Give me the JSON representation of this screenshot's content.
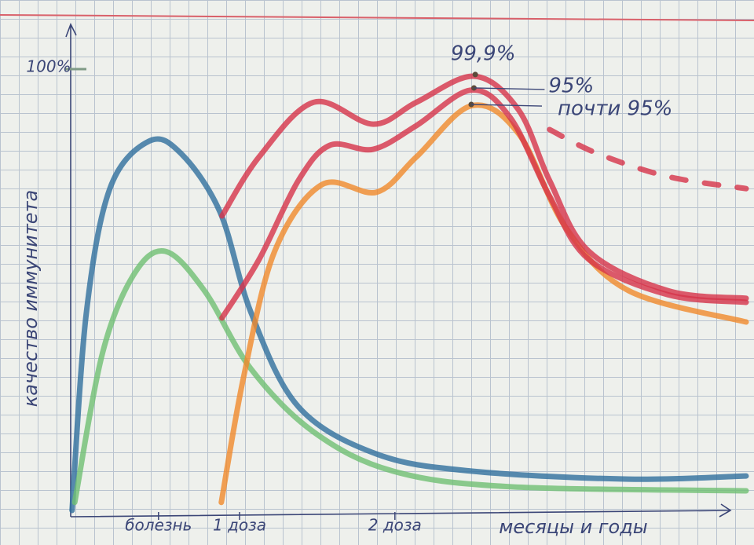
{
  "chart_data": {
    "type": "line",
    "ylabel": "качество иммунитета",
    "xlabel": "месяцы и годы",
    "xlim": [
      0,
      100
    ],
    "ylim": [
      0,
      110
    ],
    "yticks": [
      {
        "value": 100,
        "label": "100%"
      }
    ],
    "xticks": [
      {
        "value": 13,
        "label": "болезнь"
      },
      {
        "value": 25,
        "label": "1 доза"
      },
      {
        "value": 48,
        "label": "2 доза"
      }
    ],
    "series": [
      {
        "color": "#2f6f9e",
        "x": [
          0.2,
          2.3,
          5.8,
          11.6,
          16.3,
          22.1,
          26.7,
          33.7,
          45.3,
          59.3,
          82.6,
          100
        ],
        "values": [
          1.4,
          45.3,
          73.3,
          83.9,
          81.2,
          68.1,
          45.6,
          24.6,
          14.0,
          10.2,
          8.4,
          9.1
        ]
      },
      {
        "color": "#6fbf73",
        "x": [
          0.6,
          4.7,
          9.3,
          14.0,
          19.8,
          26.7,
          36.0,
          47.7,
          65.1,
          100
        ],
        "values": [
          3.2,
          36.5,
          54.0,
          59.3,
          50.5,
          33.0,
          18.9,
          10.2,
          6.7,
          5.8
        ]
      },
      {
        "color": "#f08a2c",
        "x": [
          22.3,
          25.6,
          30.2,
          37.2,
          45.3,
          51.2,
          59.3,
          66.3,
          73.3,
          82.6,
          100
        ],
        "values": [
          3.2,
          31.2,
          59.3,
          74.2,
          72.5,
          80.4,
          91.8,
          85.6,
          64.6,
          50.5,
          43.5
        ]
      },
      {
        "color": "#d6334a",
        "x": [
          22.4,
          27.9,
          33.7,
          38.4,
          44.8,
          51.2,
          59.3,
          65.1,
          70.9,
          76.7,
          88.4,
          100
        ],
        "values": [
          44.4,
          57.5,
          75.1,
          83.0,
          82.1,
          87.4,
          95.3,
          89.1,
          71.6,
          57.5,
          49.6,
          47.9
        ]
      },
      {
        "color": "#d6334a",
        "x": [
          22.4,
          27.9,
          36.0,
          44.8,
          51.2,
          59.8,
          66.3,
          70.9,
          76.7,
          88.4,
          100
        ],
        "values": [
          67.2,
          80.4,
          92.6,
          87.7,
          92.6,
          98.4,
          90.9,
          75.1,
          59.3,
          50.5,
          48.8
        ]
      },
      {
        "color": "#d6334a",
        "dashed": true,
        "x": [
          70.9,
          77.9,
          88.4,
          100
        ],
        "values": [
          86.5,
          81.2,
          76.0,
          73.3
        ]
      }
    ],
    "annotations": [
      {
        "text": "99,9%",
        "x": 59.9,
        "y": 98.8
      },
      {
        "text": "95%",
        "x": 59.7,
        "y": 95.8
      },
      {
        "text": "почти 95%",
        "x": 59.3,
        "y": 92.1
      }
    ]
  }
}
